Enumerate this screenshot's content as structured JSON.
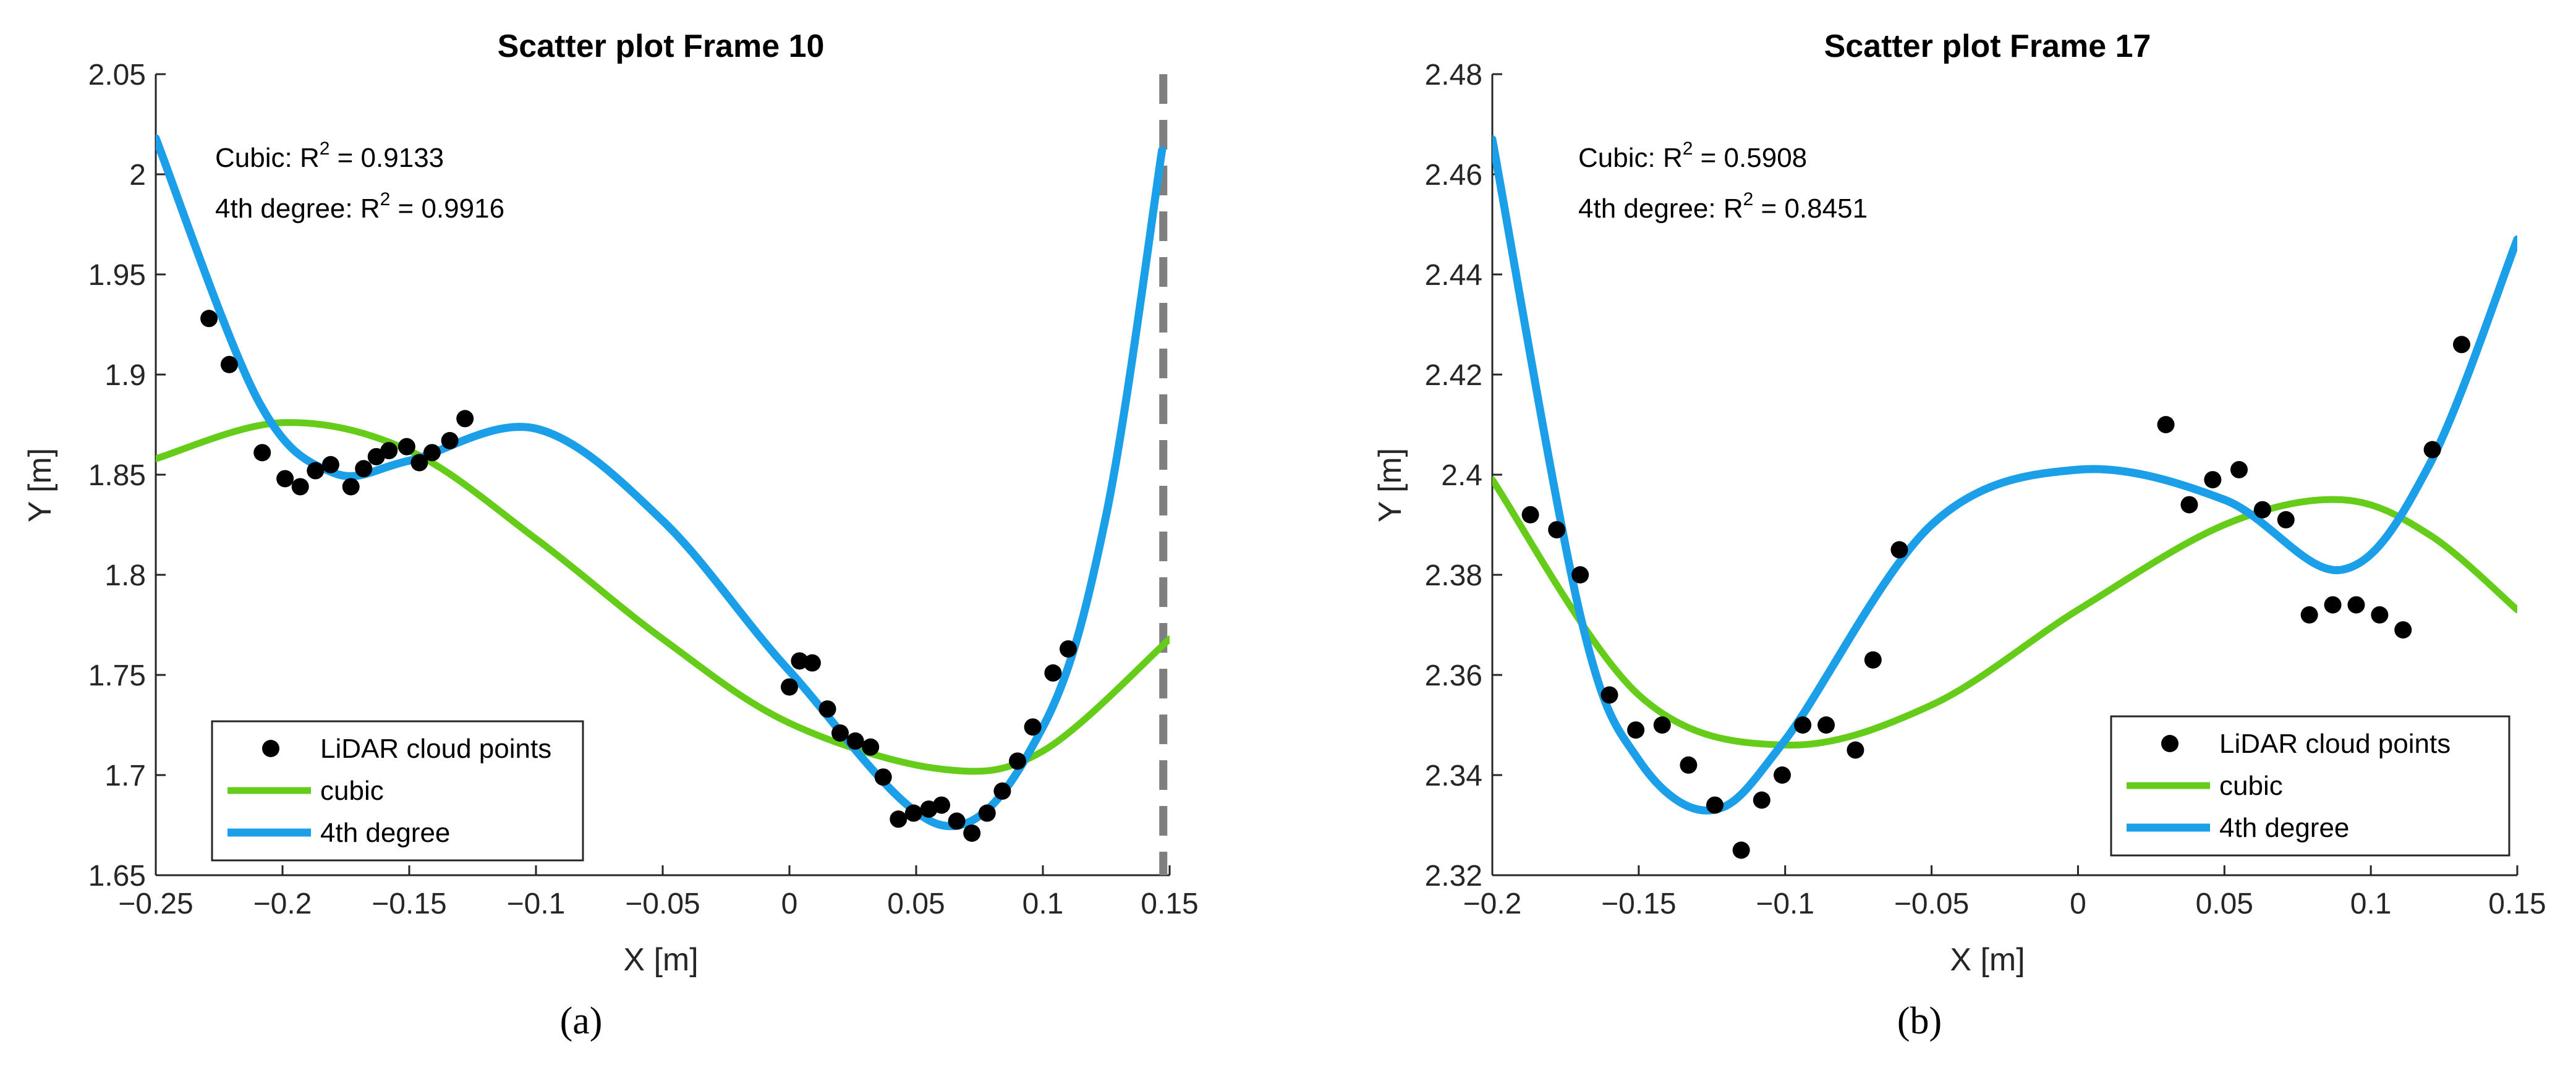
{
  "chart_data": [
    {
      "type": "scatter",
      "panel_label": "(a)",
      "title": "Scatter plot Frame 10",
      "xlabel": "X [m]",
      "ylabel": "Y [m]",
      "xlim": [
        -0.25,
        0.15
      ],
      "ylim": [
        1.65,
        2.05
      ],
      "xticks": [
        -0.25,
        -0.2,
        -0.15,
        -0.1,
        -0.05,
        0,
        0.05,
        0.1,
        0.15
      ],
      "yticks": [
        1.65,
        1.7,
        1.75,
        1.8,
        1.85,
        1.9,
        1.95,
        2,
        2.05
      ],
      "xtick_labels": [
        "−0.25",
        "−0.2",
        "−0.15",
        "−0.1",
        "−0.05",
        "0",
        "0.05",
        "0.1",
        "0.15"
      ],
      "ytick_labels": [
        "1.65",
        "1.7",
        "1.75",
        "1.8",
        "1.85",
        "1.9",
        "1.95",
        "2",
        "2.05"
      ],
      "annotations": [
        {
          "prefix": "Cubic: R",
          "sup": "2",
          "suffix": " = 0.9133"
        },
        {
          "prefix": "4th degree: R",
          "sup": "2",
          "suffix": " = 0.9916"
        }
      ],
      "legend": {
        "position": "bottom-left",
        "entries": [
          "LiDAR cloud points",
          "cubic",
          "4th degree"
        ]
      },
      "colors": {
        "points": "#000000",
        "cubic": "#66cc1a",
        "quartic": "#1b9fe8",
        "dashed": "#7f7f7f"
      },
      "vline_x": 0.1475,
      "points": [
        [
          -0.229,
          1.928
        ],
        [
          -0.221,
          1.905
        ],
        [
          -0.208,
          1.861
        ],
        [
          -0.199,
          1.848
        ],
        [
          -0.193,
          1.844
        ],
        [
          -0.187,
          1.852
        ],
        [
          -0.181,
          1.855
        ],
        [
          -0.173,
          1.844
        ],
        [
          -0.168,
          1.853
        ],
        [
          -0.163,
          1.859
        ],
        [
          -0.158,
          1.862
        ],
        [
          -0.151,
          1.864
        ],
        [
          -0.146,
          1.856
        ],
        [
          -0.141,
          1.861
        ],
        [
          -0.134,
          1.867
        ],
        [
          -0.128,
          1.878
        ],
        [
          0.0,
          1.744
        ],
        [
          0.004,
          1.757
        ],
        [
          0.009,
          1.756
        ],
        [
          0.015,
          1.733
        ],
        [
          0.02,
          1.721
        ],
        [
          0.026,
          1.717
        ],
        [
          0.032,
          1.714
        ],
        [
          0.037,
          1.699
        ],
        [
          0.043,
          1.678
        ],
        [
          0.049,
          1.681
        ],
        [
          0.055,
          1.683
        ],
        [
          0.06,
          1.685
        ],
        [
          0.066,
          1.677
        ],
        [
          0.072,
          1.671
        ],
        [
          0.078,
          1.681
        ],
        [
          0.084,
          1.692
        ],
        [
          0.09,
          1.707
        ],
        [
          0.096,
          1.724
        ],
        [
          0.104,
          1.751
        ],
        [
          0.11,
          1.763
        ]
      ],
      "cubic_fit": {
        "x": [
          -0.25,
          -0.2,
          -0.15,
          -0.1,
          -0.05,
          0.0,
          0.06,
          0.1,
          0.15
        ],
        "y": [
          1.858,
          1.876,
          1.862,
          1.818,
          1.768,
          1.726,
          1.703,
          1.712,
          1.768
        ]
      },
      "quartic_fit": {
        "x": [
          -0.25,
          -0.21,
          -0.18,
          -0.15,
          -0.1,
          -0.05,
          0.0,
          0.06,
          0.1,
          0.125,
          0.147
        ],
        "y": [
          2.018,
          1.888,
          1.851,
          1.857,
          1.873,
          1.827,
          1.752,
          1.675,
          1.724,
          1.83,
          2.012
        ]
      }
    },
    {
      "type": "scatter",
      "panel_label": "(b)",
      "title": "Scatter plot Frame 17",
      "xlabel": "X [m]",
      "ylabel": "Y [m]",
      "xlim": [
        -0.2,
        0.15
      ],
      "ylim": [
        2.32,
        2.48
      ],
      "xticks": [
        -0.2,
        -0.15,
        -0.1,
        -0.05,
        0,
        0.05,
        0.1,
        0.15
      ],
      "yticks": [
        2.32,
        2.34,
        2.36,
        2.38,
        2.4,
        2.42,
        2.44,
        2.46,
        2.48
      ],
      "xtick_labels": [
        "−0.2",
        "−0.15",
        "−0.1",
        "−0.05",
        "0",
        "0.05",
        "0.1",
        "0.15"
      ],
      "ytick_labels": [
        "2.32",
        "2.34",
        "2.36",
        "2.38",
        "2.4",
        "2.42",
        "2.44",
        "2.46",
        "2.48"
      ],
      "annotations": [
        {
          "prefix": "Cubic: R",
          "sup": "2",
          "suffix": " = 0.5908"
        },
        {
          "prefix": "4th degree: R",
          "sup": "2",
          "suffix": " = 0.8451"
        }
      ],
      "legend": {
        "position": "bottom-right",
        "entries": [
          "LiDAR cloud points",
          "cubic",
          "4th degree"
        ]
      },
      "colors": {
        "points": "#000000",
        "cubic": "#66cc1a",
        "quartic": "#1b9fe8"
      },
      "points": [
        [
          -0.187,
          2.392
        ],
        [
          -0.178,
          2.389
        ],
        [
          -0.17,
          2.38
        ],
        [
          -0.16,
          2.356
        ],
        [
          -0.151,
          2.349
        ],
        [
          -0.142,
          2.35
        ],
        [
          -0.133,
          2.342
        ],
        [
          -0.124,
          2.334
        ],
        [
          -0.115,
          2.325
        ],
        [
          -0.108,
          2.335
        ],
        [
          -0.101,
          2.34
        ],
        [
          -0.094,
          2.35
        ],
        [
          -0.086,
          2.35
        ],
        [
          -0.076,
          2.345
        ],
        [
          -0.07,
          2.363
        ],
        [
          -0.061,
          2.385
        ],
        [
          0.03,
          2.41
        ],
        [
          0.038,
          2.394
        ],
        [
          0.046,
          2.399
        ],
        [
          0.055,
          2.401
        ],
        [
          0.063,
          2.393
        ],
        [
          0.071,
          2.391
        ],
        [
          0.079,
          2.372
        ],
        [
          0.087,
          2.374
        ],
        [
          0.095,
          2.374
        ],
        [
          0.103,
          2.372
        ],
        [
          0.111,
          2.369
        ],
        [
          0.121,
          2.405
        ],
        [
          0.131,
          2.426
        ]
      ],
      "cubic_fit": {
        "x": [
          -0.2,
          -0.15,
          -0.1,
          -0.05,
          0.0,
          0.05,
          0.09,
          0.12,
          0.15
        ],
        "y": [
          2.399,
          2.356,
          2.346,
          2.354,
          2.373,
          2.39,
          2.395,
          2.388,
          2.373
        ]
      },
      "quartic_fit": {
        "x": [
          -0.2,
          -0.17,
          -0.15,
          -0.125,
          -0.1,
          -0.05,
          0.0,
          0.05,
          0.09,
          0.12,
          0.15
        ],
        "y": [
          2.467,
          2.372,
          2.343,
          2.333,
          2.347,
          2.39,
          2.401,
          2.395,
          2.381,
          2.402,
          2.447
        ]
      }
    }
  ]
}
